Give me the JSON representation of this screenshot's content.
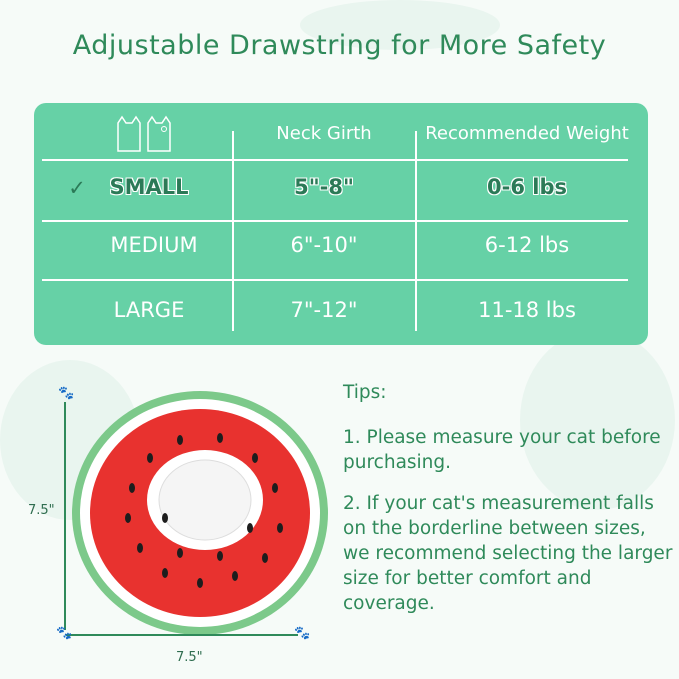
{
  "title": "Adjustable Drawstring for More Safety",
  "table": {
    "icon": "two-cats-icon",
    "headers": [
      "Neck Girth",
      "Recommended Weight"
    ],
    "rows": [
      {
        "size": "SMALL",
        "neck_girth": "5\"-8\"",
        "weight": "0-6 lbs",
        "selected": true
      },
      {
        "size": "MEDIUM",
        "neck_girth": "6\"-10\"",
        "weight": "6-12 lbs",
        "selected": false
      },
      {
        "size": "LARGE",
        "neck_girth": "7\"-12\"",
        "weight": "11-18 lbs",
        "selected": false
      }
    ],
    "check_mark": "✓"
  },
  "product": {
    "height_label": "7.5\"",
    "width_label": "7.5\""
  },
  "tips": {
    "heading": "Tips:",
    "items": [
      "1. Please measure your cat before purchasing.",
      "2. If your cat's measurement falls on the borderline between sizes, we recommend selecting the larger size for better comfort and coverage."
    ]
  },
  "colors": {
    "accent": "#66d1a6",
    "text_green": "#2f8a5a",
    "watermelon_red": "#e8322f"
  }
}
